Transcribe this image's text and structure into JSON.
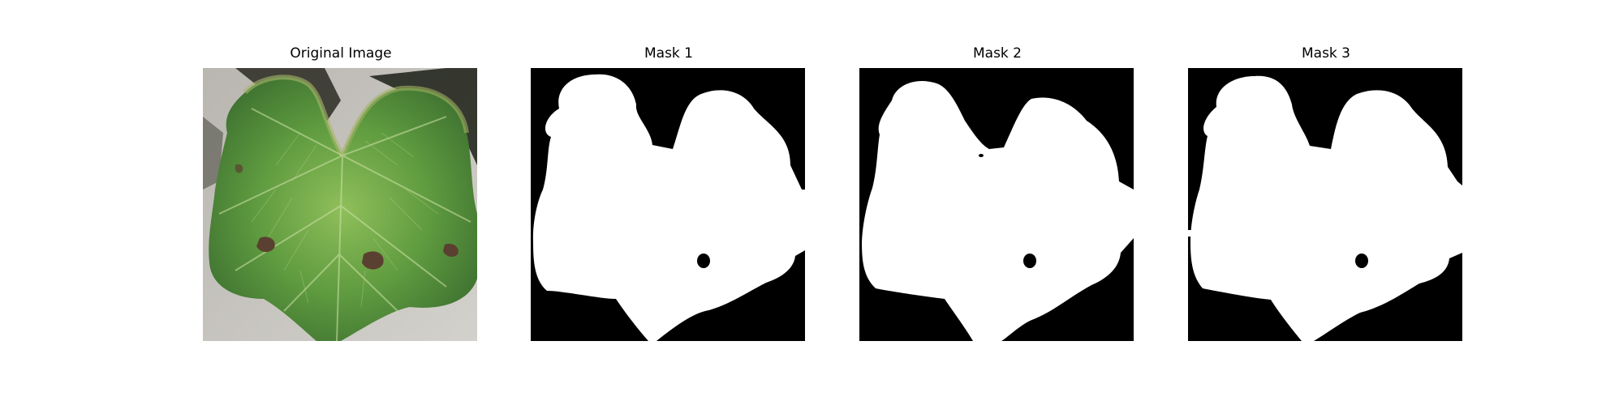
{
  "panels": [
    {
      "title": "Original Image",
      "kind": "photo"
    },
    {
      "title": "Mask 1",
      "kind": "mask"
    },
    {
      "title": "Mask 2",
      "kind": "mask"
    },
    {
      "title": "Mask 3",
      "kind": "mask"
    }
  ],
  "colors": {
    "background": "#ffffff",
    "mask_foreground": "#ffffff",
    "mask_background": "#000000",
    "photo_backdrop": "#c9c7c2",
    "leaf_green": "#5e9a3f",
    "leaf_light": "#9cc46c",
    "leaf_dark": "#2f5a25",
    "lesion_brown": "#5a4030"
  }
}
